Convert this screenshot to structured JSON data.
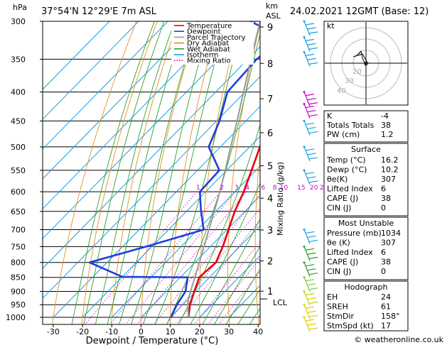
{
  "header": {
    "location": "37°54'N 12°29'E 7m ASL",
    "datetime": "24.02.2021 12GMT (Base: 12)",
    "hpa_label": "hPa",
    "km_label": "km",
    "asl_label": "ASL"
  },
  "axes": {
    "xlabel": "Dewpoint / Temperature (°C)",
    "ylabel_right": "Mixing Ratio (g/kg)",
    "x_ticks": [
      "-30",
      "-20",
      "-10",
      "0",
      "10",
      "20",
      "30",
      "40"
    ],
    "p_ticks": [
      "300",
      "350",
      "400",
      "450",
      "500",
      "550",
      "600",
      "650",
      "700",
      "750",
      "800",
      "850",
      "900",
      "950",
      "1000"
    ],
    "km_ticks": [
      "9",
      "8",
      "7",
      "6",
      "5",
      "4",
      "3",
      "2",
      "1"
    ],
    "lcl_label": "LCL",
    "mixing_labels": [
      "1",
      "2",
      "3",
      "4",
      "6",
      "8",
      "10",
      "15",
      "20",
      "25"
    ]
  },
  "legend": {
    "items": [
      {
        "label": "Temperature",
        "color": "#e8000b",
        "style": "solid"
      },
      {
        "label": "Dewpoint",
        "color": "#1f3fdc",
        "style": "solid"
      },
      {
        "label": "Parcel Trajectory",
        "color": "#999999",
        "style": "solid"
      },
      {
        "label": "Dry Adiabat",
        "color": "#e89020",
        "style": "solid"
      },
      {
        "label": "Wet Adiabat",
        "color": "#2ca02c",
        "style": "solid"
      },
      {
        "label": "Isotherm",
        "color": "#16a0e0",
        "style": "solid"
      },
      {
        "label": "Mixing Ratio",
        "color": "#cc00cc",
        "style": "dotted"
      }
    ]
  },
  "hodograph": {
    "label": "kt",
    "ring_labels": [
      "40",
      "30",
      "20"
    ]
  },
  "indices": {
    "top": [
      {
        "label": "K",
        "value": "-4"
      },
      {
        "label": "Totals Totals",
        "value": "38"
      },
      {
        "label": "PW (cm)",
        "value": "1.2"
      }
    ],
    "surface_title": "Surface",
    "surface": [
      {
        "label": "Temp (°C)",
        "value": "16.2"
      },
      {
        "label": "Dewp (°C)",
        "value": "10.2"
      },
      {
        "label": "θe(K)",
        "value": "307"
      },
      {
        "label": "Lifted Index",
        "value": "6"
      },
      {
        "label": "CAPE (J)",
        "value": "38"
      },
      {
        "label": "CIN (J)",
        "value": "0"
      }
    ],
    "mu_title": "Most Unstable",
    "mu": [
      {
        "label": "Pressure (mb)",
        "value": "1034"
      },
      {
        "label": "θe (K)",
        "value": "307"
      },
      {
        "label": "Lifted Index",
        "value": "6"
      },
      {
        "label": "CAPE (J)",
        "value": "38"
      },
      {
        "label": "CIN (J)",
        "value": "0"
      }
    ],
    "hodo_title": "Hodograph",
    "hodo": [
      {
        "label": "EH",
        "value": "24"
      },
      {
        "label": "SREH",
        "value": "61"
      },
      {
        "label": "StmDir",
        "value": "158°"
      },
      {
        "label": "StmSpd (kt)",
        "value": "17"
      }
    ]
  },
  "footer": {
    "copyright": "© weatheronline.co.uk"
  },
  "chart_data": {
    "type": "line",
    "xlabel": "Dewpoint / Temperature (°C)",
    "ylabel": "hPa",
    "xlim": [
      -35,
      40
    ],
    "ylim": [
      1000,
      300
    ],
    "x_scale": "skewed",
    "y_scale": "log",
    "series": [
      {
        "name": "Temperature",
        "color": "#e8000b",
        "points": [
          {
            "p": 1000,
            "t": 16.2
          },
          {
            "p": 950,
            "t": 12.5
          },
          {
            "p": 900,
            "t": 9.5
          },
          {
            "p": 850,
            "t": 6.5
          },
          {
            "p": 800,
            "t": 7.2
          },
          {
            "p": 750,
            "t": 4.2
          },
          {
            "p": 700,
            "t": 0.5
          },
          {
            "p": 650,
            "t": -3.5
          },
          {
            "p": 600,
            "t": -7.0
          },
          {
            "p": 550,
            "t": -11.5
          },
          {
            "p": 500,
            "t": -16.5
          },
          {
            "p": 450,
            "t": -22.0
          },
          {
            "p": 400,
            "t": -28.5
          },
          {
            "p": 350,
            "t": -36.5
          },
          {
            "p": 300,
            "t": -45.0
          }
        ]
      },
      {
        "name": "Dewpoint",
        "color": "#1f3fdc",
        "points": [
          {
            "p": 1000,
            "t": 10.2
          },
          {
            "p": 950,
            "t": 8.0
          },
          {
            "p": 900,
            "t": 6.5
          },
          {
            "p": 850,
            "t": 2.5
          },
          {
            "p": 848,
            "t": -20.0
          },
          {
            "p": 800,
            "t": -36.0
          },
          {
            "p": 750,
            "t": -22.0
          },
          {
            "p": 700,
            "t": -8.0
          },
          {
            "p": 650,
            "t": -15.0
          },
          {
            "p": 600,
            "t": -22.0
          },
          {
            "p": 550,
            "t": -22.5
          },
          {
            "p": 500,
            "t": -34.0
          },
          {
            "p": 450,
            "t": -39.0
          },
          {
            "p": 400,
            "t": -46.0
          },
          {
            "p": 350,
            "t": -47.0
          },
          {
            "p": 320,
            "t": -45.0
          },
          {
            "p": 300,
            "t": -62.0
          }
        ]
      },
      {
        "name": "Parcel Trajectory",
        "color": "#999999",
        "points": [
          {
            "p": 1000,
            "t": 16.2
          },
          {
            "p": 950,
            "t": 11.7
          },
          {
            "p": 925,
            "t": 9.8
          },
          {
            "p": 900,
            "t": 8.2
          },
          {
            "p": 850,
            "t": 5.0
          },
          {
            "p": 800,
            "t": 1.5
          },
          {
            "p": 750,
            "t": -2.2
          },
          {
            "p": 700,
            "t": -6.2
          },
          {
            "p": 650,
            "t": -10.5
          },
          {
            "p": 600,
            "t": -15.2
          },
          {
            "p": 550,
            "t": -20.5
          },
          {
            "p": 500,
            "t": -26.5
          },
          {
            "p": 450,
            "t": -33.0
          },
          {
            "p": 400,
            "t": -40.5
          },
          {
            "p": 350,
            "t": -49.0
          },
          {
            "p": 300,
            "t": -58.5
          }
        ]
      }
    ]
  }
}
